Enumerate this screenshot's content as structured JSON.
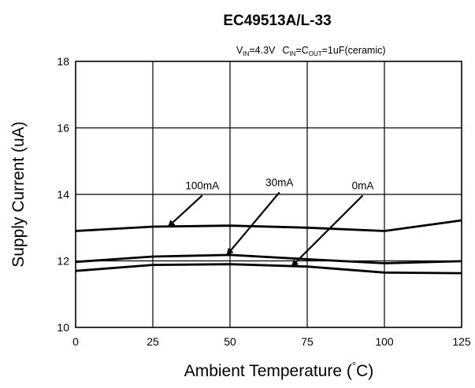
{
  "chart_data": {
    "type": "line",
    "title": "EC49513A/L-33",
    "conditions": {
      "vin_var": "V",
      "vin_sub": "IN",
      "vin_val": "=4.3V",
      "cin_var": "C",
      "cin_sub": "IN",
      "eq": "=C",
      "cout_sub": "OUT",
      "cap_val": "=1uF(ceramic)"
    },
    "xlabel_main": "Ambient Temperature (",
    "xlabel_deg": "°",
    "xlabel_end": "C)",
    "ylabel": "Supply Current (uA)",
    "xlim": [
      0,
      125
    ],
    "ylim": [
      10,
      18
    ],
    "xticks": [
      0,
      25,
      50,
      75,
      100,
      125
    ],
    "yticks": [
      10,
      12,
      14,
      16,
      18
    ],
    "grid": true,
    "series": [
      {
        "name": "100mA",
        "x": [
          0,
          25,
          50,
          75,
          100,
          125
        ],
        "values": [
          12.9,
          13.03,
          13.06,
          13.0,
          12.9,
          13.22
        ]
      },
      {
        "name": "30mA",
        "x": [
          0,
          25,
          50,
          75,
          100,
          125
        ],
        "values": [
          11.97,
          12.13,
          12.18,
          12.05,
          11.93,
          11.99
        ]
      },
      {
        "name": "0mA",
        "x": [
          0,
          25,
          50,
          75,
          100,
          125
        ],
        "values": [
          11.7,
          11.88,
          11.9,
          11.83,
          11.65,
          11.63
        ]
      }
    ],
    "annotations": [
      {
        "series": "100mA",
        "text": "100mA",
        "tip": [
          30,
          13.03
        ],
        "tail": [
          41,
          13.97
        ]
      },
      {
        "series": "30mA",
        "text": "30mA",
        "tip": [
          49,
          12.18
        ],
        "tail": [
          66,
          14.06
        ]
      },
      {
        "series": "0mA",
        "text": "0mA",
        "tip": [
          70,
          11.84
        ],
        "tail": [
          93,
          13.97
        ]
      }
    ]
  }
}
